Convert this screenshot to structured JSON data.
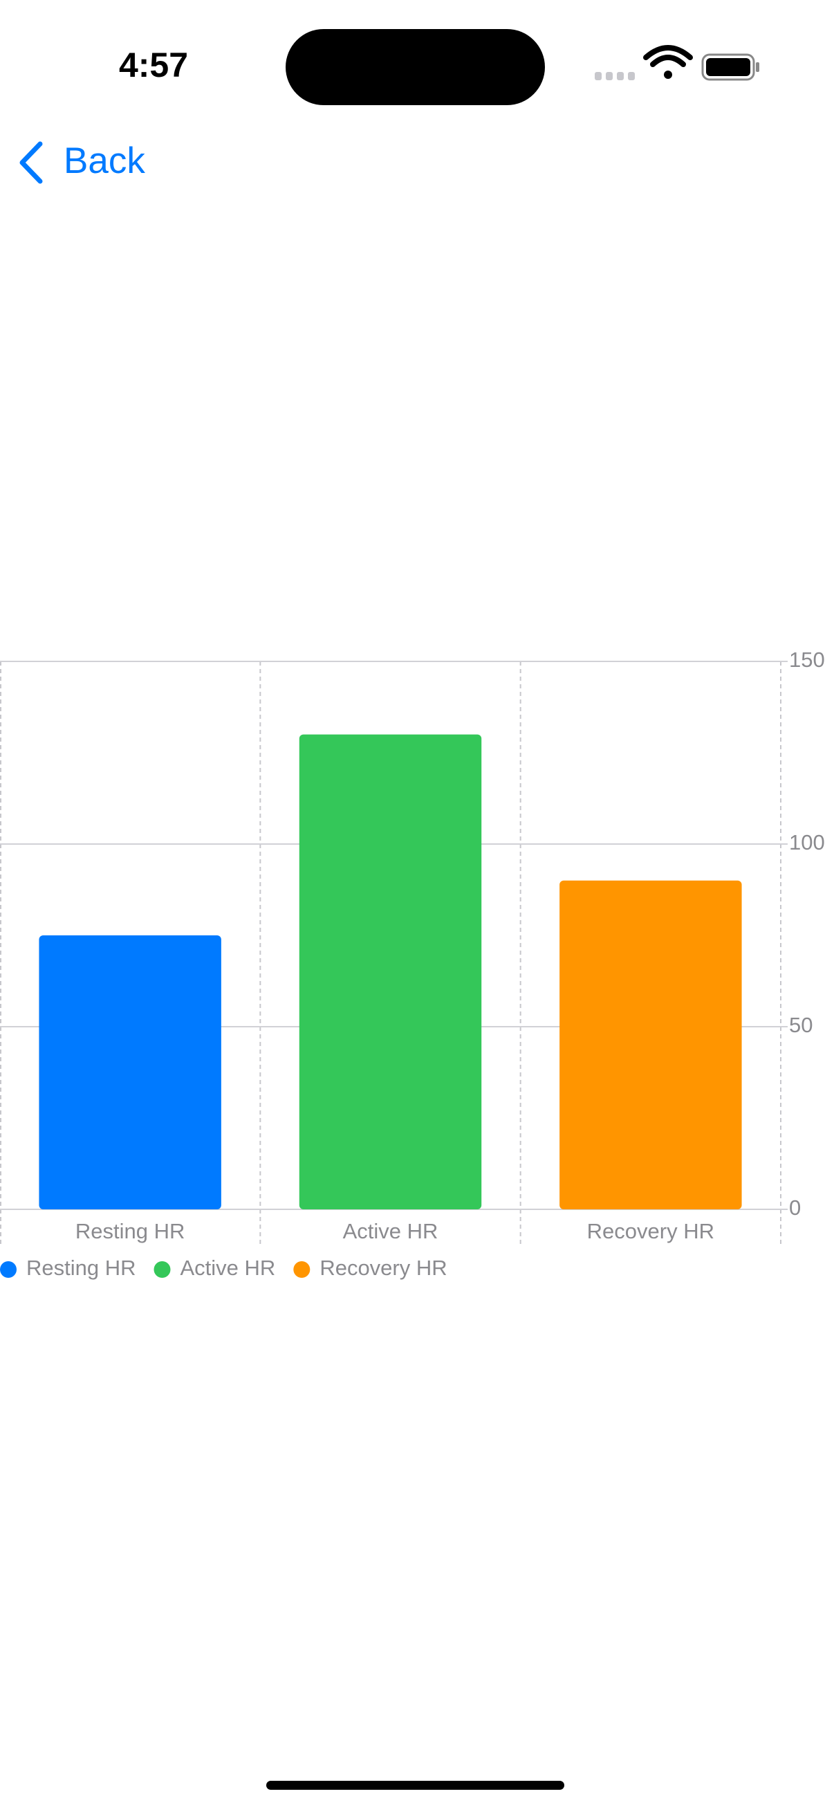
{
  "status_bar": {
    "time": "4:57"
  },
  "nav": {
    "back": "Back"
  },
  "chart_data": {
    "type": "bar",
    "categories": [
      "Resting HR",
      "Active HR",
      "Recovery HR"
    ],
    "values": [
      75,
      130,
      90
    ],
    "colors": [
      "#007aff",
      "#34c759",
      "#ff9500"
    ],
    "ylim": [
      0,
      150
    ],
    "yticks": [
      0,
      50,
      100,
      150
    ],
    "grid": true,
    "legend": "bottom-left"
  }
}
